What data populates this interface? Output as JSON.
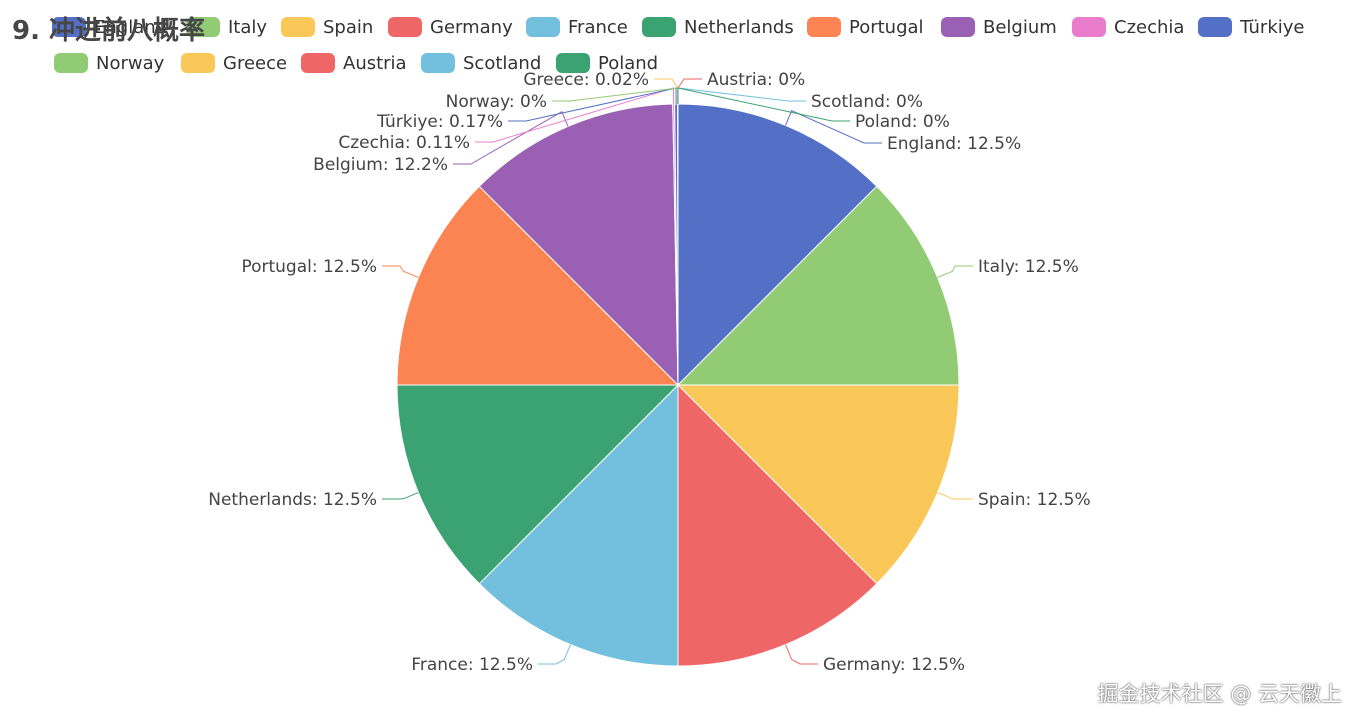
{
  "chart_data": {
    "type": "pie",
    "title": "9. 冲进前八概率",
    "slices": [
      {
        "name": "England",
        "value": 12.5,
        "label": "England: 12.5%",
        "color": "#5470c6"
      },
      {
        "name": "Italy",
        "value": 12.5,
        "label": "Italy: 12.5%",
        "color": "#91cc75"
      },
      {
        "name": "Spain",
        "value": 12.5,
        "label": "Spain: 12.5%",
        "color": "#fac858"
      },
      {
        "name": "Germany",
        "value": 12.5,
        "label": "Germany: 12.5%",
        "color": "#ee6666"
      },
      {
        "name": "France",
        "value": 12.5,
        "label": "France: 12.5%",
        "color": "#73c0de"
      },
      {
        "name": "Netherlands",
        "value": 12.5,
        "label": "Netherlands: 12.5%",
        "color": "#3ba272"
      },
      {
        "name": "Portugal",
        "value": 12.5,
        "label": "Portugal: 12.5%",
        "color": "#fc8452"
      },
      {
        "name": "Belgium",
        "value": 12.2,
        "label": "Belgium: 12.2%",
        "color": "#9a60b4"
      },
      {
        "name": "Czechia",
        "value": 0.11,
        "label": "Czechia: 0.11%",
        "color": "#ea7ccc"
      },
      {
        "name": "Türkiye",
        "value": 0.17,
        "label": "Türkiye: 0.17%",
        "color": "#5470c6"
      },
      {
        "name": "Norway",
        "value": 0,
        "label": "Norway: 0%",
        "color": "#91cc75"
      },
      {
        "name": "Greece",
        "value": 0.02,
        "label": "Greece: 0.02%",
        "color": "#fac858"
      },
      {
        "name": "Austria",
        "value": 0,
        "label": "Austria: 0%",
        "color": "#ee6666"
      },
      {
        "name": "Scotland",
        "value": 0,
        "label": "Scotland: 0%",
        "color": "#73c0de"
      },
      {
        "name": "Poland",
        "value": 0,
        "label": "Poland: 0%",
        "color": "#3ba272"
      }
    ],
    "legend": {
      "placement": "top"
    }
  },
  "watermark": "掘金技术社区 @ 云天徽上"
}
